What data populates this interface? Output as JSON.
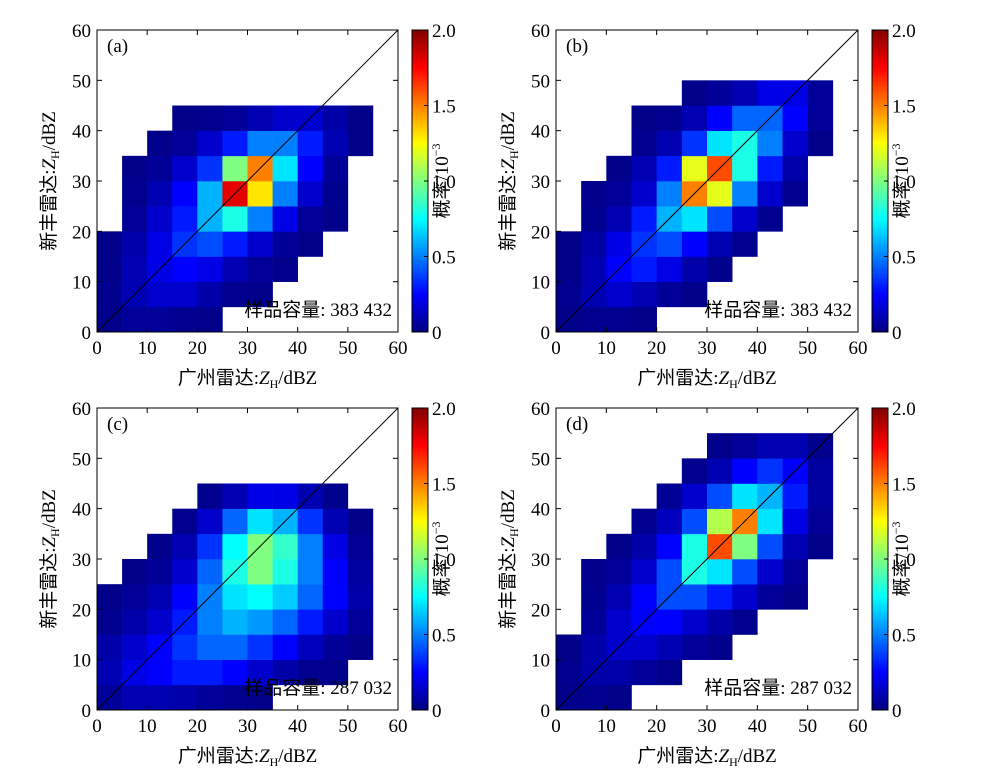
{
  "chart_data": [
    {
      "type": "heatmap",
      "title": "(a)",
      "colormap": "jet",
      "xlabel": {
        "prefix": "广州雷达:",
        "symbol": "Z",
        "subscript": "H",
        "unit": "/dBZ"
      },
      "ylabel": {
        "prefix": "新丰雷达:",
        "symbol": "Z",
        "subscript": "H",
        "unit": "/dBZ"
      },
      "annotation": "样品容量: 383 432",
      "xlim": [
        0,
        60
      ],
      "ylim": [
        0,
        60
      ],
      "xticks": [
        0,
        10,
        20,
        30,
        40,
        50,
        60
      ],
      "yticks": [
        0,
        10,
        20,
        30,
        40,
        50,
        60
      ],
      "x_bins": [
        0,
        5,
        10,
        15,
        20,
        25,
        30,
        35,
        40,
        45,
        50,
        55,
        60
      ],
      "y_bins": [
        0,
        5,
        10,
        15,
        20,
        25,
        30,
        35,
        40,
        45,
        50,
        55,
        60
      ],
      "values": [
        [
          0.02,
          0.05,
          0.05,
          0.03,
          0.02,
          null,
          null,
          null,
          null,
          null,
          null,
          null
        ],
        [
          0.03,
          0.1,
          0.15,
          0.15,
          0.08,
          0.03,
          0.02,
          null,
          null,
          null,
          null,
          null
        ],
        [
          0.02,
          0.1,
          0.2,
          0.25,
          0.2,
          0.1,
          0.05,
          0.02,
          null,
          null,
          null,
          null
        ],
        [
          0.02,
          0.08,
          0.2,
          0.35,
          0.4,
          0.3,
          0.15,
          0.05,
          0.02,
          null,
          null,
          null
        ],
        [
          null,
          0.05,
          0.15,
          0.3,
          0.6,
          0.8,
          0.5,
          0.2,
          0.05,
          0.02,
          null,
          null
        ],
        [
          null,
          0.03,
          0.1,
          0.25,
          0.6,
          1.8,
          1.3,
          0.5,
          0.15,
          0.03,
          null,
          null
        ],
        [
          null,
          0.02,
          0.05,
          0.15,
          0.35,
          1.0,
          1.5,
          0.7,
          0.25,
          0.05,
          null,
          null
        ],
        [
          null,
          null,
          0.02,
          0.05,
          0.15,
          0.3,
          0.5,
          0.5,
          0.3,
          0.1,
          0.02,
          null
        ],
        [
          null,
          null,
          null,
          0.02,
          0.03,
          0.05,
          0.1,
          0.15,
          0.15,
          0.08,
          0.02,
          null
        ],
        [
          null,
          null,
          null,
          null,
          null,
          null,
          null,
          null,
          null,
          null,
          null,
          null
        ],
        [
          null,
          null,
          null,
          null,
          null,
          null,
          null,
          null,
          null,
          null,
          null,
          null
        ],
        [
          null,
          null,
          null,
          null,
          null,
          null,
          null,
          null,
          null,
          null,
          null,
          null
        ]
      ],
      "colorbar": {
        "label": "概率/10",
        "exponent": "−3",
        "lim": [
          0,
          2
        ],
        "ticks": [
          0,
          0.5,
          {
            "value": 1,
            "label": "1.0"
          },
          1.5,
          {
            "value": 2,
            "label": "2.0"
          }
        ]
      }
    },
    {
      "type": "heatmap",
      "title": "(b)",
      "colormap": "jet",
      "xlabel": {
        "prefix": "广州雷达:",
        "symbol": "Z",
        "subscript": "H",
        "unit": "/dBZ"
      },
      "ylabel": {
        "prefix": "新丰雷达:",
        "symbol": "Z",
        "subscript": "H",
        "unit": "/dBZ"
      },
      "annotation": "样品容量: 383 432",
      "xlim": [
        0,
        60
      ],
      "ylim": [
        0,
        60
      ],
      "xticks": [
        0,
        10,
        20,
        30,
        40,
        50,
        60
      ],
      "yticks": [
        0,
        10,
        20,
        30,
        40,
        50,
        60
      ],
      "x_bins": [
        0,
        5,
        10,
        15,
        20,
        25,
        30,
        35,
        40,
        45,
        50,
        55,
        60
      ],
      "y_bins": [
        0,
        5,
        10,
        15,
        20,
        25,
        30,
        35,
        40,
        45,
        50,
        55,
        60
      ],
      "values": [
        [
          0.02,
          0.03,
          0.03,
          0.02,
          null,
          null,
          null,
          null,
          null,
          null,
          null,
          null
        ],
        [
          0.03,
          0.1,
          0.15,
          0.1,
          0.05,
          0.02,
          null,
          null,
          null,
          null,
          null,
          null
        ],
        [
          0.02,
          0.1,
          0.25,
          0.3,
          0.2,
          0.08,
          0.02,
          null,
          null,
          null,
          null,
          null
        ],
        [
          0.02,
          0.08,
          0.2,
          0.35,
          0.4,
          0.25,
          0.1,
          0.03,
          null,
          null,
          null,
          null
        ],
        [
          null,
          0.03,
          0.1,
          0.3,
          0.6,
          0.7,
          0.4,
          0.15,
          0.03,
          null,
          null,
          null
        ],
        [
          null,
          0.02,
          0.05,
          0.15,
          0.5,
          1.5,
          1.2,
          0.5,
          0.15,
          0.03,
          null,
          null
        ],
        [
          null,
          null,
          0.02,
          0.1,
          0.3,
          1.2,
          1.6,
          0.8,
          0.3,
          0.08,
          null,
          null
        ],
        [
          null,
          null,
          null,
          0.03,
          0.1,
          0.35,
          0.7,
          0.8,
          0.5,
          0.15,
          0.02,
          null
        ],
        [
          null,
          null,
          null,
          0.02,
          0.03,
          0.1,
          0.25,
          0.45,
          0.45,
          0.25,
          0.05,
          null
        ],
        [
          null,
          null,
          null,
          null,
          null,
          0.02,
          0.05,
          0.1,
          0.2,
          0.2,
          0.05,
          null
        ],
        [
          null,
          null,
          null,
          null,
          null,
          null,
          null,
          null,
          null,
          null,
          null,
          null
        ],
        [
          null,
          null,
          null,
          null,
          null,
          null,
          null,
          null,
          null,
          null,
          null,
          null
        ]
      ],
      "colorbar": {
        "label": "概率/10",
        "exponent": "−3",
        "lim": [
          0,
          2
        ],
        "ticks": [
          0,
          0.5,
          {
            "value": 1,
            "label": "1.0"
          },
          1.5,
          {
            "value": 2,
            "label": "2.0"
          }
        ]
      }
    },
    {
      "type": "heatmap",
      "title": "(c)",
      "colormap": "jet",
      "xlabel": {
        "prefix": "广州雷达:",
        "symbol": "Z",
        "subscript": "H",
        "unit": "/dBZ"
      },
      "ylabel": {
        "prefix": "新丰雷达:",
        "symbol": "Z",
        "subscript": "H",
        "unit": "/dBZ"
      },
      "annotation": "样品容量: 287 032",
      "xlim": [
        0,
        60
      ],
      "ylim": [
        0,
        60
      ],
      "xticks": [
        0,
        10,
        20,
        30,
        40,
        50,
        60
      ],
      "yticks": [
        0,
        10,
        20,
        30,
        40,
        50,
        60
      ],
      "x_bins": [
        0,
        5,
        10,
        15,
        20,
        25,
        30,
        35,
        40,
        45,
        50,
        55,
        60
      ],
      "y_bins": [
        0,
        5,
        10,
        15,
        20,
        25,
        30,
        35,
        40,
        45,
        50,
        55,
        60
      ],
      "values": [
        [
          0.05,
          0.1,
          0.1,
          0.08,
          0.05,
          0.03,
          0.02,
          null,
          null,
          null,
          null,
          null
        ],
        [
          0.1,
          0.2,
          0.25,
          0.3,
          0.3,
          0.25,
          0.15,
          0.08,
          0.03,
          0.02,
          null,
          null
        ],
        [
          0.08,
          0.15,
          0.25,
          0.35,
          0.45,
          0.45,
          0.35,
          0.25,
          0.12,
          0.05,
          0.02,
          null
        ],
        [
          0.03,
          0.08,
          0.15,
          0.3,
          0.5,
          0.6,
          0.55,
          0.45,
          0.3,
          0.15,
          0.05,
          null
        ],
        [
          0.02,
          0.05,
          0.1,
          0.25,
          0.5,
          0.7,
          0.75,
          0.65,
          0.45,
          0.25,
          0.08,
          null
        ],
        [
          null,
          0.02,
          0.05,
          0.15,
          0.45,
          0.8,
          1.0,
          0.8,
          0.5,
          0.25,
          0.06,
          null
        ],
        [
          null,
          null,
          0.02,
          0.1,
          0.35,
          0.75,
          1.0,
          0.85,
          0.5,
          0.2,
          0.04,
          null
        ],
        [
          null,
          null,
          null,
          0.03,
          0.15,
          0.45,
          0.7,
          0.6,
          0.35,
          0.1,
          0.02,
          null
        ],
        [
          null,
          null,
          null,
          null,
          0.03,
          0.1,
          0.2,
          0.2,
          0.1,
          0.03,
          null,
          null
        ],
        [
          null,
          null,
          null,
          null,
          null,
          null,
          null,
          null,
          null,
          null,
          null,
          null
        ],
        [
          null,
          null,
          null,
          null,
          null,
          null,
          null,
          null,
          null,
          null,
          null,
          null
        ],
        [
          null,
          null,
          null,
          null,
          null,
          null,
          null,
          null,
          null,
          null,
          null,
          null
        ]
      ],
      "colorbar": {
        "label": "概率/10",
        "exponent": "−3",
        "lim": [
          0,
          2
        ],
        "ticks": [
          0,
          0.5,
          {
            "value": 1,
            "label": "1.0"
          },
          1.5,
          {
            "value": 2,
            "label": "2.0"
          }
        ]
      }
    },
    {
      "type": "heatmap",
      "title": "(d)",
      "colormap": "jet",
      "xlabel": {
        "prefix": "广州雷达:",
        "symbol": "Z",
        "subscript": "H",
        "unit": "/dBZ"
      },
      "ylabel": {
        "prefix": "新丰雷达:",
        "symbol": "Z",
        "subscript": "H",
        "unit": "/dBZ"
      },
      "annotation": "样品容量: 287 032",
      "xlim": [
        0,
        60
      ],
      "ylim": [
        0,
        60
      ],
      "xticks": [
        0,
        10,
        20,
        30,
        40,
        50,
        60
      ],
      "yticks": [
        0,
        10,
        20,
        30,
        40,
        50,
        60
      ],
      "x_bins": [
        0,
        5,
        10,
        15,
        20,
        25,
        30,
        35,
        40,
        45,
        50,
        55,
        60
      ],
      "y_bins": [
        0,
        5,
        10,
        15,
        20,
        25,
        30,
        35,
        40,
        45,
        50,
        55,
        60
      ],
      "values": [
        [
          0.02,
          0.03,
          0.02,
          null,
          null,
          null,
          null,
          null,
          null,
          null,
          null,
          null
        ],
        [
          0.03,
          0.08,
          0.08,
          0.05,
          0.02,
          null,
          null,
          null,
          null,
          null,
          null,
          null
        ],
        [
          0.02,
          0.08,
          0.15,
          0.15,
          0.1,
          0.05,
          0.02,
          null,
          null,
          null,
          null,
          null
        ],
        [
          null,
          0.05,
          0.15,
          0.25,
          0.25,
          0.15,
          0.08,
          0.03,
          null,
          null,
          null,
          null
        ],
        [
          null,
          0.03,
          0.1,
          0.25,
          0.4,
          0.4,
          0.3,
          0.15,
          0.05,
          0.02,
          null,
          null
        ],
        [
          null,
          0.02,
          0.05,
          0.15,
          0.4,
          0.8,
          0.7,
          0.4,
          0.15,
          0.05,
          null,
          null
        ],
        [
          null,
          null,
          0.02,
          0.08,
          0.25,
          0.8,
          1.6,
          1.0,
          0.4,
          0.1,
          0.02,
          null
        ],
        [
          null,
          null,
          null,
          0.03,
          0.12,
          0.4,
          1.1,
          1.5,
          0.7,
          0.2,
          0.04,
          null
        ],
        [
          null,
          null,
          null,
          null,
          0.04,
          0.15,
          0.4,
          0.7,
          0.6,
          0.3,
          0.06,
          null
        ],
        [
          null,
          null,
          null,
          null,
          null,
          0.03,
          0.1,
          0.25,
          0.35,
          0.25,
          0.06,
          null
        ],
        [
          null,
          null,
          null,
          null,
          null,
          null,
          0.02,
          0.05,
          0.1,
          0.1,
          0.03,
          null
        ],
        [
          null,
          null,
          null,
          null,
          null,
          null,
          null,
          null,
          null,
          null,
          null,
          null
        ]
      ],
      "colorbar": {
        "label": "概率/10",
        "exponent": "−3",
        "lim": [
          0,
          2
        ],
        "ticks": [
          0,
          0.5,
          {
            "value": 1,
            "label": "1.0"
          },
          1.5,
          {
            "value": 2,
            "label": "2.0"
          }
        ]
      }
    }
  ]
}
